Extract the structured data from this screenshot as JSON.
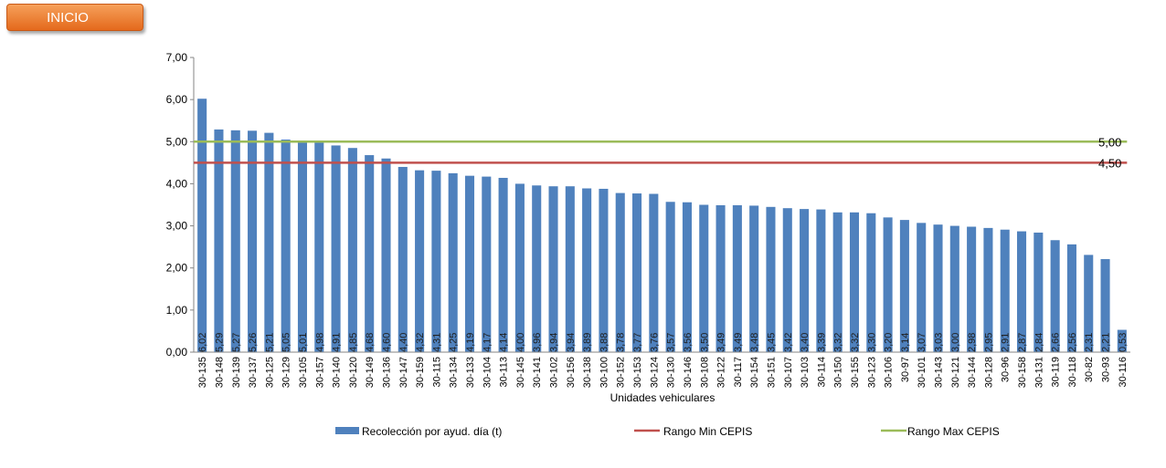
{
  "inicio_button": {
    "label": "INICIO",
    "color_top": "#f6a05a",
    "color_bottom": "#e4691c"
  },
  "chart_data": {
    "type": "bar",
    "xlabel": "Unidades vehiculares",
    "ylabel": "",
    "ylim": [
      0,
      7
    ],
    "yticks": [
      "0,00",
      "1,00",
      "2,00",
      "3,00",
      "4,00",
      "5,00",
      "6,00",
      "7,00"
    ],
    "grid": false,
    "legend_position": "bottom",
    "categories": [
      "30-135",
      "30-148",
      "30-139",
      "30-137",
      "30-125",
      "30-129",
      "30-105",
      "30-157",
      "30-140",
      "30-120",
      "30-149",
      "30-136",
      "30-147",
      "30-159",
      "30-115",
      "30-134",
      "30-133",
      "30-104",
      "30-113",
      "30-145",
      "30-141",
      "30-102",
      "30-156",
      "30-138",
      "30-100",
      "30-152",
      "30-153",
      "30-124",
      "30-130",
      "30-146",
      "30-108",
      "30-122",
      "30-117",
      "30-154",
      "30-151",
      "30-107",
      "30-103",
      "30-114",
      "30-150",
      "30-155",
      "30-123",
      "30-106",
      "30-97",
      "30-101",
      "30-143",
      "30-121",
      "30-144",
      "30-128",
      "30-96",
      "30-158",
      "30-131",
      "30-119",
      "30-118",
      "30-82",
      "30-93",
      "30-116"
    ],
    "series": [
      {
        "name": "Recolección por ayud. día (t)",
        "type": "bar",
        "color": "#4f81bd",
        "values": [
          6.02,
          5.29,
          5.27,
          5.26,
          5.21,
          5.05,
          5.01,
          4.98,
          4.91,
          4.85,
          4.68,
          4.6,
          4.4,
          4.32,
          4.31,
          4.25,
          4.19,
          4.17,
          4.14,
          4.0,
          3.96,
          3.94,
          3.94,
          3.89,
          3.88,
          3.78,
          3.77,
          3.76,
          3.57,
          3.56,
          3.5,
          3.49,
          3.49,
          3.48,
          3.45,
          3.42,
          3.4,
          3.39,
          3.32,
          3.32,
          3.3,
          3.2,
          3.14,
          3.07,
          3.03,
          3.0,
          2.98,
          2.95,
          2.91,
          2.87,
          2.84,
          2.66,
          2.56,
          2.31,
          2.21,
          0.53
        ],
        "labels": [
          "6,02",
          "5,29",
          "5,27",
          "5,26",
          "5,21",
          "5,05",
          "5,01",
          "4,98",
          "4,91",
          "4,85",
          "4,68",
          "4,60",
          "4,40",
          "4,32",
          "4,31",
          "4,25",
          "4,19",
          "4,17",
          "4,14",
          "4,00",
          "3,96",
          "3,94",
          "3,94",
          "3,89",
          "3,88",
          "3,78",
          "3,77",
          "3,76",
          "3,57",
          "3,56",
          "3,50",
          "3,49",
          "3,49",
          "3,48",
          "3,45",
          "3,42",
          "3,40",
          "3,39",
          "3,32",
          "3,32",
          "3,30",
          "3,20",
          "3,14",
          "3,07",
          "3,03",
          "3,00",
          "2,98",
          "2,95",
          "2,91",
          "2,87",
          "2,84",
          "2,66",
          "2,56",
          "2,31",
          "2,21",
          "0,53"
        ]
      },
      {
        "name": "Rango Min CEPIS",
        "type": "line",
        "color": "#c0504d",
        "value": 4.5,
        "label": "4,50"
      },
      {
        "name": "Rango Max CEPIS",
        "type": "line",
        "color": "#9bbb59",
        "value": 5.0,
        "label": "5,00"
      }
    ]
  }
}
